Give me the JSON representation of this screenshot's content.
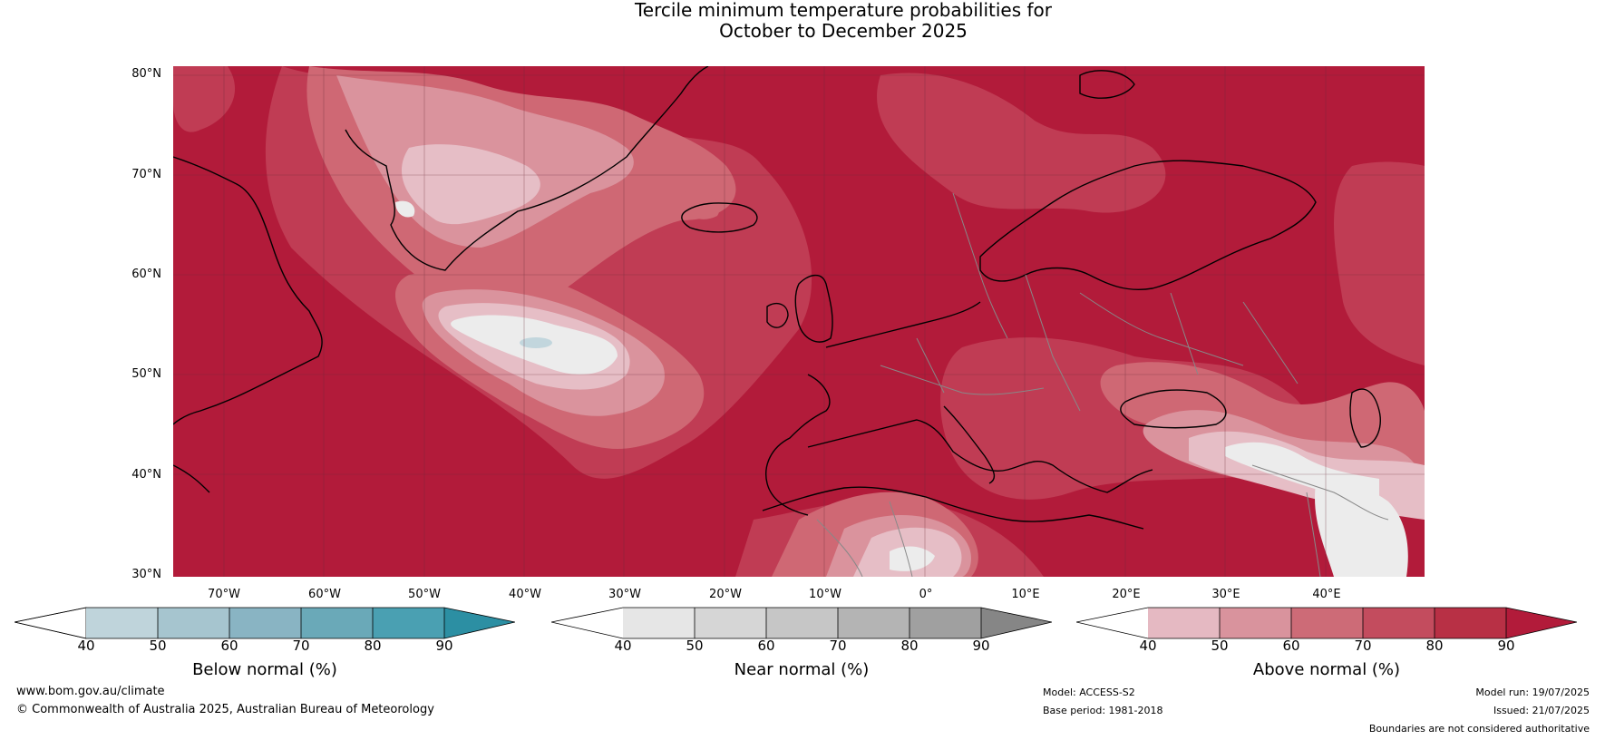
{
  "title": {
    "line1": "Tercile minimum temperature probabilities for",
    "line2": "October to December 2025"
  },
  "map": {
    "lat_labels": [
      "80°N",
      "70°N",
      "60°N",
      "50°N",
      "40°N",
      "30°N"
    ],
    "lon_labels": [
      "70°W",
      "60°W",
      "50°W",
      "40°W",
      "30°W",
      "20°W",
      "10°W",
      "0°",
      "10°E",
      "20°E",
      "30°E",
      "40°E"
    ],
    "colors": {
      "above_90": "#b21b3a",
      "above_80": "#c03c54",
      "above_70": "#cf6874",
      "above_60": "#da939d",
      "above_50": "#e6bec6",
      "near_white": "#ececec",
      "below_light": "#c2d6dd",
      "coast": "#000000",
      "border": "#888888"
    }
  },
  "colorbars": [
    {
      "name": "Below normal (%)",
      "ticks": [
        "40",
        "50",
        "60",
        "70",
        "80",
        "90"
      ],
      "colors": [
        "#ffffff",
        "#bfd4db",
        "#a6c5cf",
        "#89b4c3",
        "#6aa9b8",
        "#4aa0b2",
        "#2c8fa3"
      ]
    },
    {
      "name": "Near normal (%)",
      "ticks": [
        "40",
        "50",
        "60",
        "70",
        "80",
        "90"
      ],
      "colors": [
        "#ffffff",
        "#e6e6e6",
        "#d6d6d6",
        "#c6c6c6",
        "#b4b4b4",
        "#a0a0a0",
        "#868686"
      ]
    },
    {
      "name": "Above normal (%)",
      "ticks": [
        "40",
        "50",
        "60",
        "70",
        "80",
        "90"
      ],
      "colors": [
        "#ffffff",
        "#e5b9c2",
        "#d9939d",
        "#cd6b77",
        "#c34c5e",
        "#b83045",
        "#b21b3a"
      ]
    }
  ],
  "footer": {
    "website": "www.bom.gov.au/climate",
    "copyright": "© Commonwealth of Australia 2025, Australian Bureau of Meteorology",
    "model": "Model: ACCESS-S2",
    "base_period": "Base period: 1981-2018",
    "model_run": "Model run: 19/07/2025",
    "issued": "Issued: 21/07/2025",
    "disclaimer": "Boundaries are not considered authoritative"
  }
}
